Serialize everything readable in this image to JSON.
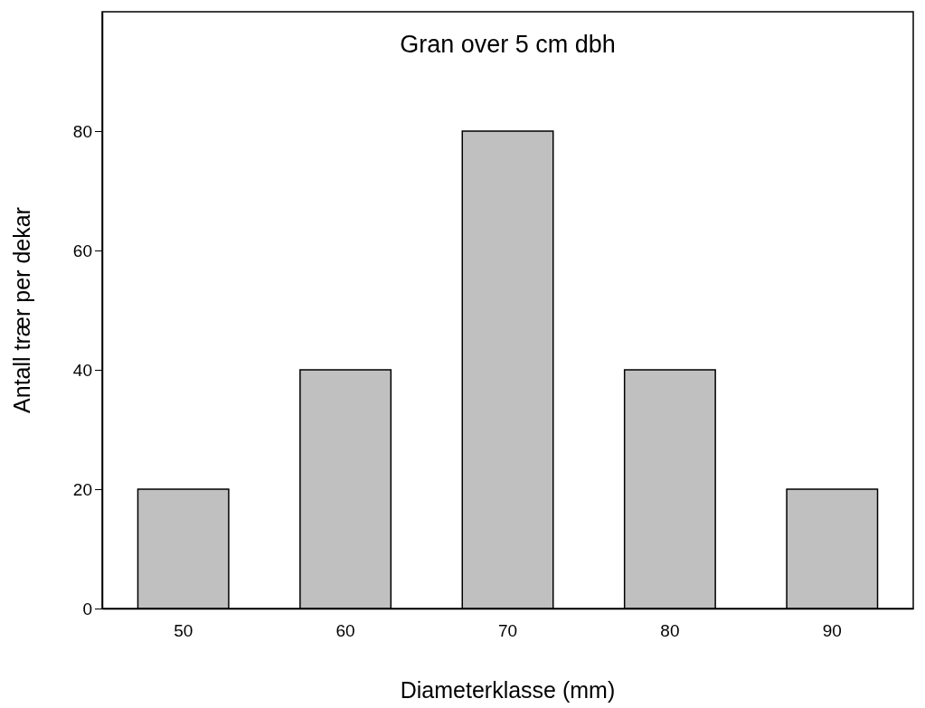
{
  "chart_data": {
    "type": "bar",
    "title": "Gran over 5 cm dbh",
    "xlabel": "Diameterklasse (mm)",
    "ylabel": "Antall trær per dekar",
    "categories": [
      "50",
      "60",
      "70",
      "80",
      "90"
    ],
    "values": [
      20,
      40,
      80,
      40,
      20
    ],
    "color": "#c0c0c0",
    "ylim": [
      0,
      100
    ],
    "yticks": [
      0,
      20,
      40,
      60,
      80
    ],
    "grid": false
  }
}
